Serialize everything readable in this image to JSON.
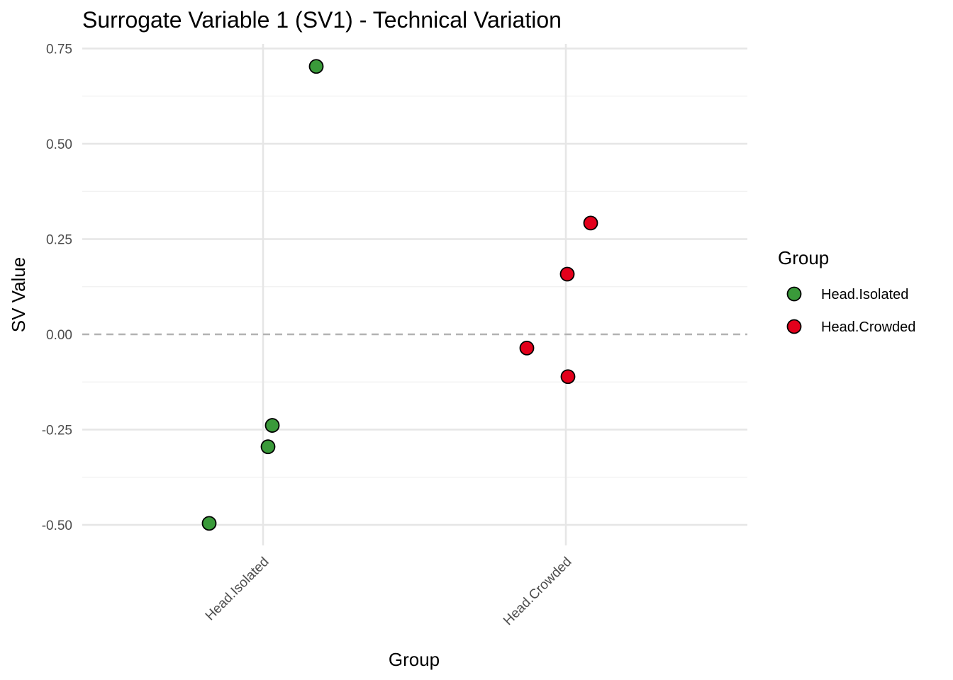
{
  "chart_data": {
    "type": "scatter",
    "title": "Surrogate Variable 1 (SV1) - Technical Variation",
    "xlabel": "Group",
    "ylabel": "SV Value",
    "categories": [
      "Head.Isolated",
      "Head.Crowded"
    ],
    "yticks": [
      "0.75",
      "0.50",
      "0.25",
      "0.00",
      "-0.25",
      "-0.50"
    ],
    "ylim": [
      -0.55,
      0.76
    ],
    "reference_line": {
      "y": 0,
      "style": "dashed"
    },
    "grid": true,
    "legend": {
      "title": "Group",
      "position": "right",
      "entries": [
        {
          "label": "Head.Isolated",
          "color": "#3a9a3a"
        },
        {
          "label": "Head.Crowded",
          "color": "#e3001b"
        }
      ]
    },
    "series": [
      {
        "name": "Head.Isolated",
        "color": "#3a9a3a",
        "points": [
          {
            "x": "Head.Isolated",
            "y": 0.703
          },
          {
            "x": "Head.Isolated",
            "y": -0.239
          },
          {
            "x": "Head.Isolated",
            "y": -0.295
          },
          {
            "x": "Head.Isolated",
            "y": -0.496
          }
        ]
      },
      {
        "name": "Head.Crowded",
        "color": "#e3001b",
        "points": [
          {
            "x": "Head.Crowded",
            "y": 0.292
          },
          {
            "x": "Head.Crowded",
            "y": 0.158
          },
          {
            "x": "Head.Crowded",
            "y": -0.036
          },
          {
            "x": "Head.Crowded",
            "y": -0.111
          }
        ]
      }
    ]
  }
}
